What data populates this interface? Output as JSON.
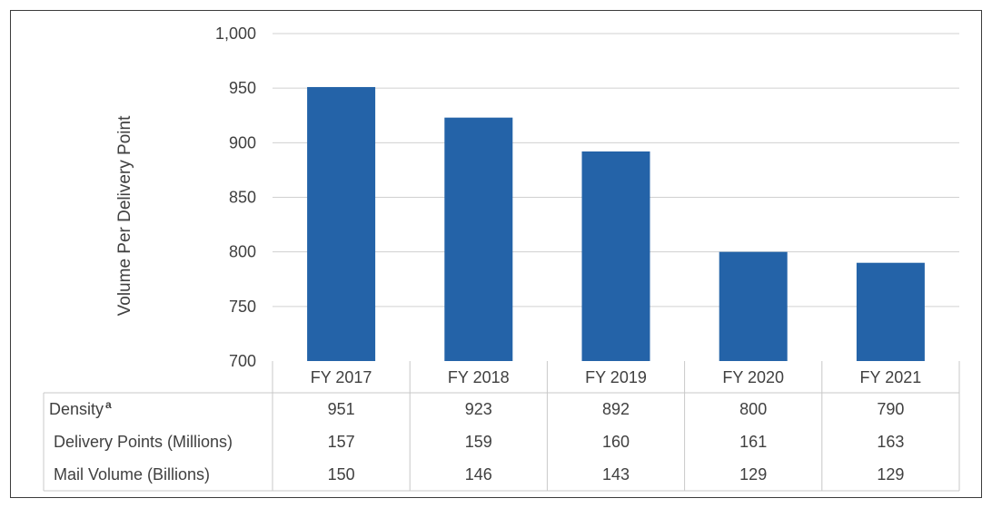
{
  "chart_data": {
    "type": "bar",
    "categories": [
      "FY 2017",
      "FY 2018",
      "FY 2019",
      "FY 2020",
      "FY 2021"
    ],
    "values": [
      951,
      923,
      892,
      800,
      790
    ],
    "ylabel": "Volume Per Delivery Point",
    "ylim": [
      700,
      1000
    ],
    "yticks": [
      "1,000",
      "950",
      "900",
      "850",
      "800",
      "750",
      "700"
    ],
    "ytick_values": [
      1000,
      950,
      900,
      850,
      800,
      750,
      700
    ],
    "grid": true,
    "bar_color": "#2463A8",
    "data_table": {
      "rows": [
        {
          "label": "Density",
          "superscript": "a",
          "values": [
            "951",
            "923",
            "892",
            "800",
            "790"
          ]
        },
        {
          "label": "Delivery Points (Millions)",
          "values": [
            "157",
            "159",
            "160",
            "161",
            "163"
          ]
        },
        {
          "label": "Mail Volume (Billions)",
          "values": [
            "150",
            "146",
            "143",
            "129",
            "129"
          ]
        }
      ]
    }
  }
}
